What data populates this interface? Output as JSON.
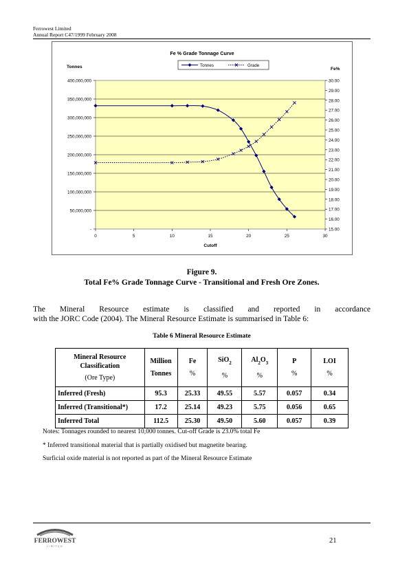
{
  "header": {
    "company": "Ferrowest Limited",
    "report": "Annual Report C47/1999 February 2008"
  },
  "chart_data": {
    "type": "line",
    "title": "Fe % Grade Tonnage Curve",
    "xlabel": "Cutoff",
    "ylabel_left": "Tonnes",
    "ylabel_right": "Fe%",
    "legend": {
      "placement": "top-center",
      "entries": [
        "Tonnes",
        "Grade"
      ]
    },
    "xlim": [
      0,
      30
    ],
    "x_ticks": [
      "0",
      "5",
      "10",
      "15",
      "20",
      "25",
      "30"
    ],
    "ylim_left": [
      0,
      400000000
    ],
    "y_ticks_left": [
      "-",
      "50,000,000",
      "100,000,000",
      "150,000,000",
      "200,000,000",
      "250,000,000",
      "300,000,000",
      "350,000,000",
      "400,000,000"
    ],
    "ylim_right": [
      15,
      30
    ],
    "y_ticks_right": [
      "15.00",
      "16.00",
      "17.00",
      "18.00",
      "19.00",
      "20.00",
      "21.00",
      "22.00",
      "23.00",
      "24.00",
      "25.00",
      "26.00",
      "27.00",
      "28.00",
      "29.00",
      "30.00"
    ],
    "grid": "horizontal",
    "plot_background": "#ffffc0",
    "series": [
      {
        "name": "Tonnes",
        "axis": "left",
        "color": "#000080",
        "marker": "diamond",
        "style": "solid",
        "x": [
          0,
          10,
          12,
          14,
          16,
          18,
          19,
          20,
          21,
          22,
          23,
          24,
          25,
          26
        ],
        "y": [
          332000000,
          332000000,
          332000000,
          331000000,
          320000000,
          293000000,
          270000000,
          235000000,
          198000000,
          155000000,
          112000000,
          80000000,
          54000000,
          33000000
        ]
      },
      {
        "name": "Grade",
        "axis": "right",
        "color": "#000080",
        "marker": "x",
        "style": "dotted",
        "x": [
          0,
          10,
          12,
          14,
          16,
          18,
          19,
          20,
          21,
          22,
          23,
          24,
          25,
          26
        ],
        "y": [
          21.7,
          21.7,
          21.75,
          21.8,
          22.05,
          22.6,
          22.95,
          23.35,
          23.85,
          24.55,
          25.3,
          26.05,
          26.85,
          27.75
        ]
      }
    ]
  },
  "figure": {
    "number": "Figure 9.",
    "caption": "Total Fe% Grade Tonnage Curve - Transitional and Fresh Ore Zones."
  },
  "paragraph": {
    "words_line1": [
      "The",
      "Mineral",
      "Resource",
      "estimate",
      "is",
      "classified",
      "and",
      "reported",
      "in",
      "accordance"
    ],
    "line2": "with the JORC Code (2004). The Mineral Resource Estimate is summarised in Table 6:"
  },
  "table": {
    "title": "Table 6  Mineral Resource Estimate",
    "headers": {
      "classification_line1": "Mineral Resource",
      "classification_line2": "Classification",
      "classification_line3": "(Ore Type)",
      "million_line1": "Million",
      "million_line2": "Tonnes",
      "fe": "Fe",
      "sio_main": "SiO",
      "sio_sub": "2",
      "al_a": "Al",
      "al_sub1": "2",
      "al_o": "O",
      "al_sub2": "3",
      "p": "P",
      "loi": "LOI",
      "pct": "%"
    },
    "rows": [
      {
        "label": "Inferred (Fresh)",
        "tonnes": "95.3",
        "fe": "25.33",
        "sio2": "49.55",
        "al2o3": "5.57",
        "p": "0.057",
        "loi": "0.34"
      },
      {
        "label": "Inferred (Transitional*)",
        "tonnes": "17.2",
        "fe": "25.14",
        "sio2": "49.23",
        "al2o3": "5.75",
        "p": "0.056",
        "loi": "0.65"
      },
      {
        "label": "Inferred Total",
        "tonnes": "112.5",
        "fe": "25.30",
        "sio2": "49.50",
        "al2o3": "5.60",
        "p": "0.057",
        "loi": "0.39"
      }
    ]
  },
  "notes": [
    "Notes: Tonnages rounded to nearest 10,000 tonnes.  Cut-off Grade is 23.0% total Fe",
    "* Inferred transitional material that is partially oxidised but magnetite bearing.",
    "Surficial oxide material is not reported as part of the Mineral Resource Estimate"
  ],
  "footer": {
    "logo_name": "FERROWEST",
    "logo_sub": "LIMITED",
    "page_number": "21"
  }
}
